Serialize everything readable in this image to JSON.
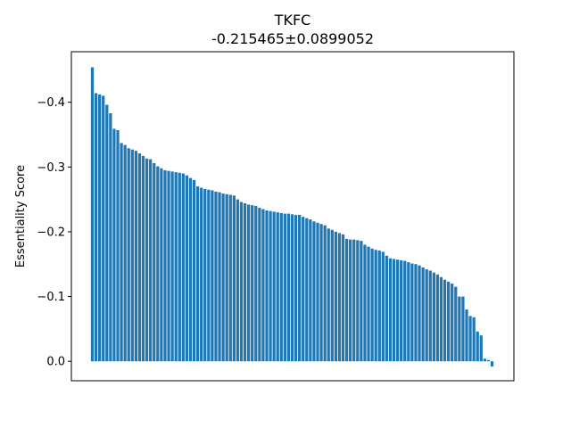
{
  "chart_data": {
    "type": "bar",
    "title": "TKFC",
    "subtitle": "-0.215465±0.0899052",
    "xlabel": "",
    "ylabel": "Essentiality Score",
    "ylim": [
      0.03,
      -0.478
    ],
    "yticks": [
      -0.4,
      -0.3,
      -0.2,
      -0.1,
      0.0
    ],
    "ytick_labels": [
      "−0.4",
      "−0.3",
      "−0.2",
      "−0.1",
      "0.0"
    ],
    "grid": false,
    "bar_color": "#1f77b4",
    "values": [
      -0.454,
      -0.414,
      -0.412,
      -0.41,
      -0.396,
      -0.383,
      -0.359,
      -0.357,
      -0.337,
      -0.334,
      -0.329,
      -0.327,
      -0.325,
      -0.321,
      -0.317,
      -0.313,
      -0.312,
      -0.306,
      -0.301,
      -0.298,
      -0.295,
      -0.294,
      -0.293,
      -0.292,
      -0.291,
      -0.29,
      -0.287,
      -0.283,
      -0.28,
      -0.27,
      -0.268,
      -0.266,
      -0.265,
      -0.264,
      -0.262,
      -0.261,
      -0.259,
      -0.258,
      -0.257,
      -0.256,
      -0.25,
      -0.246,
      -0.244,
      -0.242,
      -0.241,
      -0.24,
      -0.237,
      -0.235,
      -0.233,
      -0.232,
      -0.231,
      -0.23,
      -0.229,
      -0.228,
      -0.228,
      -0.227,
      -0.226,
      -0.226,
      -0.223,
      -0.221,
      -0.219,
      -0.216,
      -0.214,
      -0.212,
      -0.21,
      -0.205,
      -0.203,
      -0.2,
      -0.198,
      -0.196,
      -0.189,
      -0.188,
      -0.188,
      -0.187,
      -0.186,
      -0.18,
      -0.177,
      -0.174,
      -0.172,
      -0.171,
      -0.169,
      -0.163,
      -0.159,
      -0.158,
      -0.157,
      -0.156,
      -0.155,
      -0.153,
      -0.151,
      -0.15,
      -0.148,
      -0.145,
      -0.142,
      -0.14,
      -0.137,
      -0.134,
      -0.13,
      -0.126,
      -0.123,
      -0.12,
      -0.115,
      -0.1,
      -0.1,
      -0.08,
      -0.07,
      -0.068,
      -0.046,
      -0.04,
      -0.004,
      -0.002,
      0.008
    ]
  }
}
